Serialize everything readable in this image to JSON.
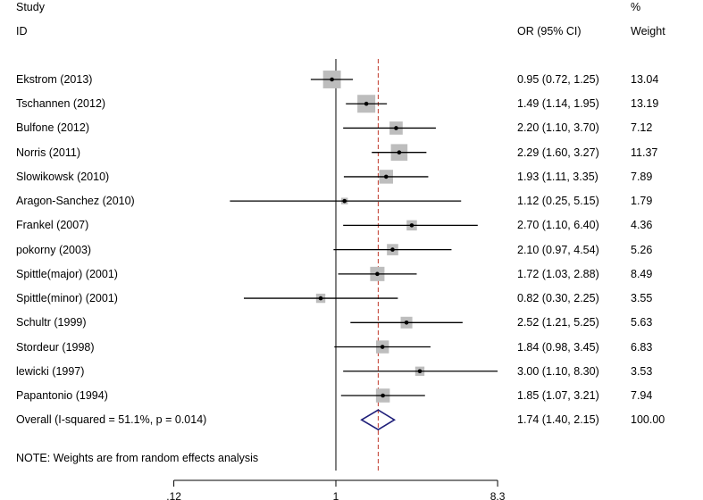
{
  "headers": {
    "study_line1": "Study",
    "study_line2": "ID",
    "or_label": "OR (95% CI)",
    "weight_line1": "%",
    "weight_line2": "Weight"
  },
  "note": "NOTE: Weights are from random effects analysis",
  "chart_data": {
    "type": "forest",
    "scale": "log",
    "null_line": 1,
    "pooled_line": 1.74,
    "axis_range": [
      0.12,
      8.3
    ],
    "axis_ticks": [
      {
        "value": 0.12,
        "label": ".12"
      },
      {
        "value": 1,
        "label": "1"
      },
      {
        "value": 8.3,
        "label": "8.3"
      }
    ],
    "colors": {
      "pooled_line": "#c0392b",
      "diamond": "#1f1f7a",
      "box": "#bdbdbd"
    },
    "studies": [
      {
        "study": "Ekstrom  (2013)",
        "or": 0.95,
        "lo": 0.72,
        "hi": 1.25,
        "ci_text": "0.95 (0.72, 1.25)",
        "weight": 13.04,
        "weight_text": "13.04"
      },
      {
        "study": "Tschannen (2012)",
        "or": 1.49,
        "lo": 1.14,
        "hi": 1.95,
        "ci_text": "1.49 (1.14, 1.95)",
        "weight": 13.19,
        "weight_text": "13.19"
      },
      {
        "study": "Bulfone (2012)",
        "or": 2.2,
        "lo": 1.1,
        "hi": 3.7,
        "ci_text": "2.20 (1.10, 3.70)",
        "weight": 7.12,
        "weight_text": "7.12"
      },
      {
        "study": "Norris (2011)",
        "or": 2.29,
        "lo": 1.6,
        "hi": 3.27,
        "ci_text": "2.29 (1.60, 3.27)",
        "weight": 11.37,
        "weight_text": "11.37"
      },
      {
        "study": "Slowikowsk (2010)",
        "or": 1.93,
        "lo": 1.11,
        "hi": 3.35,
        "ci_text": "1.93 (1.11, 3.35)",
        "weight": 7.89,
        "weight_text": "7.89"
      },
      {
        "study": "Aragon-Sanchez (2010)",
        "or": 1.12,
        "lo": 0.25,
        "hi": 5.15,
        "ci_text": "1.12 (0.25, 5.15)",
        "weight": 1.79,
        "weight_text": "1.79"
      },
      {
        "study": "Frankel (2007)",
        "or": 2.7,
        "lo": 1.1,
        "hi": 6.4,
        "ci_text": "2.70 (1.10, 6.40)",
        "weight": 4.36,
        "weight_text": "4.36"
      },
      {
        "study": "pokorny (2003)",
        "or": 2.1,
        "lo": 0.97,
        "hi": 4.54,
        "ci_text": "2.10 (0.97, 4.54)",
        "weight": 5.26,
        "weight_text": "5.26"
      },
      {
        "study": "Spittle(major) (2001)",
        "or": 1.72,
        "lo": 1.03,
        "hi": 2.88,
        "ci_text": "1.72 (1.03, 2.88)",
        "weight": 8.49,
        "weight_text": "8.49"
      },
      {
        "study": "Spittle(minor) (2001)",
        "or": 0.82,
        "lo": 0.3,
        "hi": 2.25,
        "ci_text": "0.82 (0.30, 2.25)",
        "weight": 3.55,
        "weight_text": "3.55"
      },
      {
        "study": "Schultr (1999)",
        "or": 2.52,
        "lo": 1.21,
        "hi": 5.25,
        "ci_text": "2.52 (1.21, 5.25)",
        "weight": 5.63,
        "weight_text": "5.63"
      },
      {
        "study": "Stordeur  (1998)",
        "or": 1.84,
        "lo": 0.98,
        "hi": 3.45,
        "ci_text": "1.84 (0.98, 3.45)",
        "weight": 6.83,
        "weight_text": "6.83"
      },
      {
        "study": "lewicki  (1997)",
        "or": 3.0,
        "lo": 1.1,
        "hi": 8.3,
        "ci_text": "3.00 (1.10, 8.30)",
        "weight": 3.53,
        "weight_text": "3.53"
      },
      {
        "study": "Papantonio (1994)",
        "or": 1.85,
        "lo": 1.07,
        "hi": 3.21,
        "ci_text": "1.85 (1.07, 3.21)",
        "weight": 7.94,
        "weight_text": "7.94"
      }
    ],
    "overall": {
      "label": "Overall  (I-squared = 51.1%, p = 0.014)",
      "or": 1.74,
      "lo": 1.4,
      "hi": 2.15,
      "ci_text": "1.74 (1.40, 2.15)",
      "weight_text": "100.00"
    }
  }
}
